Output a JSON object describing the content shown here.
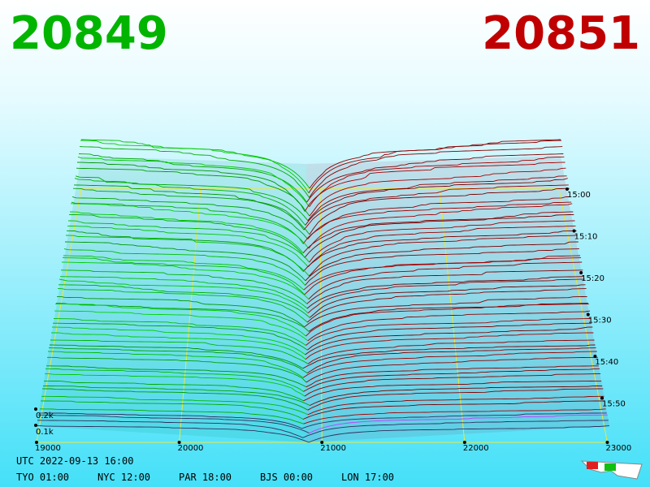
{
  "header": {
    "bid": "20849",
    "ask": "20851"
  },
  "price_axis": {
    "labels": [
      "19000",
      "20000",
      "21000",
      "22000",
      "23000"
    ]
  },
  "depth_axis": {
    "labels": [
      "0.2k",
      "0.1k"
    ]
  },
  "time_axis": {
    "labels": [
      "15:00",
      "15:10",
      "15:20",
      "15:30",
      "15:40",
      "15:50"
    ]
  },
  "footer": {
    "utc": "UTC 2022-09-13 16:00",
    "clocks": [
      "TYO 01:00",
      "NYC 12:00",
      "PAR 18:00",
      "BJS 00:00",
      "LON 17:00"
    ]
  }
}
